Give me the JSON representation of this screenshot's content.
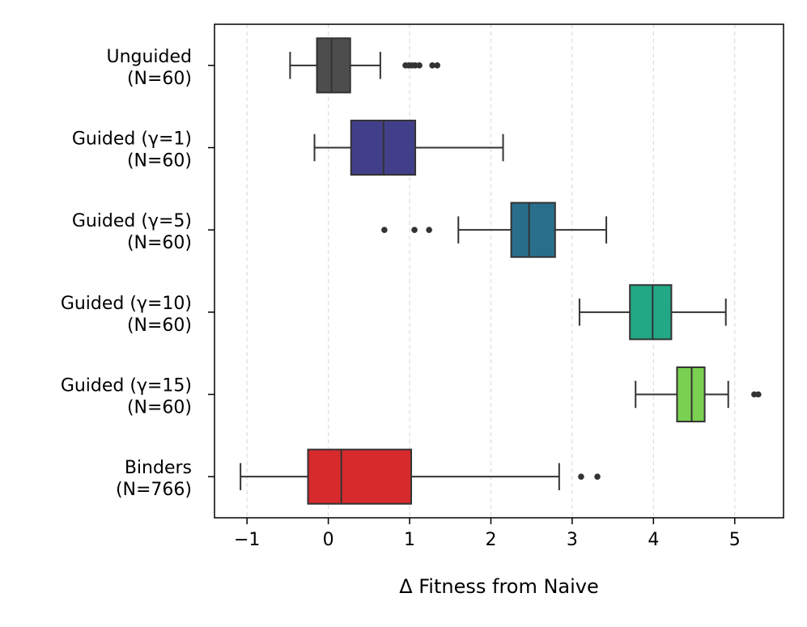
{
  "chart_data": {
    "type": "boxplot",
    "orientation": "horizontal",
    "xlabel": "Δ Fitness from Naive",
    "ylabel": "",
    "title": "",
    "xlim": [
      -1.4,
      5.6
    ],
    "x_ticks": [
      -1,
      0,
      1,
      2,
      3,
      4,
      5
    ],
    "x_tick_labels": [
      "−1",
      "0",
      "1",
      "2",
      "3",
      "4",
      "5"
    ],
    "grid": "vertical dashed",
    "categories": [
      {
        "label_line1": "Unguided",
        "label_line2": "(N=60)",
        "color": "#4d4d4d",
        "whisker_low": -0.47,
        "q1": -0.14,
        "median": 0.04,
        "q3": 0.27,
        "whisker_high": 0.64,
        "outliers": [
          0.95,
          0.99,
          1.03,
          1.07,
          1.12,
          1.28,
          1.34
        ]
      },
      {
        "label_line1": "Guided (γ=1)",
        "label_line2": "(N=60)",
        "color": "#423f8a",
        "whisker_low": -0.17,
        "q1": 0.28,
        "median": 0.68,
        "q3": 1.07,
        "whisker_high": 2.15,
        "outliers": []
      },
      {
        "label_line1": "Guided (γ=5)",
        "label_line2": "(N=60)",
        "color": "#296f8c",
        "whisker_low": 1.6,
        "q1": 2.25,
        "median": 2.47,
        "q3": 2.79,
        "whisker_high": 3.42,
        "outliers": [
          0.69,
          1.06,
          1.24
        ]
      },
      {
        "label_line1": "Guided (γ=10)",
        "label_line2": "(N=60)",
        "color": "#22a884",
        "whisker_low": 3.09,
        "q1": 3.71,
        "median": 3.99,
        "q3": 4.22,
        "whisker_high": 4.89,
        "outliers": []
      },
      {
        "label_line1": "Guided (γ=15)",
        "label_line2": "(N=60)",
        "color": "#7ad151",
        "whisker_low": 3.78,
        "q1": 4.29,
        "median": 4.47,
        "q3": 4.63,
        "whisker_high": 4.92,
        "outliers": [
          5.24,
          5.29
        ]
      },
      {
        "label_line1": "Binders",
        "label_line2": "(N=766)",
        "color": "#d62a2d",
        "whisker_low": -1.08,
        "q1": -0.25,
        "median": 0.16,
        "q3": 1.02,
        "whisker_high": 2.84,
        "outliers": [
          3.11,
          3.31
        ]
      }
    ]
  }
}
